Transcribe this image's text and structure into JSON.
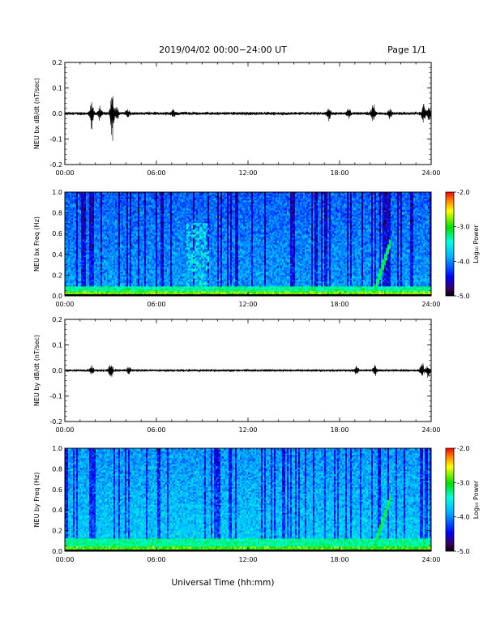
{
  "header": {
    "title": "2019/04/02  00:00−24:00 UT",
    "page": "Page 1/1"
  },
  "x_axis": {
    "label": "Universal Time (hh:mm)",
    "ticks": [
      "00:00",
      "06:00",
      "12:00",
      "18:00",
      "24:00"
    ]
  },
  "colorbar": {
    "label": "Log₁₀ Power",
    "ticks": [
      "-2.0",
      "-3.0",
      "-4.0",
      "-5.0"
    ]
  },
  "chart_data": [
    {
      "type": "line",
      "ylabel": "NEU bx dB/dt (nT/sec)",
      "x_unit": "hours UT",
      "xlim": [
        0,
        24
      ],
      "ylim": [
        -0.2,
        0.2
      ],
      "yticks": [
        "0.2",
        "0.1",
        "0.0",
        "-0.1",
        "-0.2"
      ],
      "baseline_amplitude": 0.006,
      "events": [
        {
          "t": 1.75,
          "amp": 0.07
        },
        {
          "t": 2.3,
          "amp": 0.03
        },
        {
          "t": 3.1,
          "amp": 0.12
        },
        {
          "t": 3.4,
          "amp": 0.04
        },
        {
          "t": 4.1,
          "amp": 0.02
        },
        {
          "t": 7.1,
          "amp": 0.025
        },
        {
          "t": 17.3,
          "amp": 0.03
        },
        {
          "t": 18.6,
          "amp": 0.025
        },
        {
          "t": 20.2,
          "amp": 0.045
        },
        {
          "t": 21.3,
          "amp": 0.02
        },
        {
          "t": 23.5,
          "amp": 0.05
        },
        {
          "t": 23.85,
          "amp": 0.035
        }
      ]
    },
    {
      "type": "heatmap",
      "ylabel": "NEU bx Freq (Hz)",
      "x_unit": "hours UT",
      "xlim": [
        0,
        24
      ],
      "ylim": [
        0,
        1
      ],
      "yticks": [
        "1.0",
        "0.8",
        "0.6",
        "0.4",
        "0.2",
        "0.0"
      ],
      "value": "log10 power",
      "clim": [
        -5.0,
        -2.0
      ],
      "features": [
        {
          "desc": "intense low-frequency band",
          "f_max": 0.04,
          "log_power": -2.8
        },
        {
          "desc": "moderate band",
          "f_max": 0.1,
          "log_power": -3.3
        },
        {
          "desc": "broadband background",
          "log_power": -3.9
        },
        {
          "desc": "rising emission",
          "t": [
            20.3,
            21.3
          ],
          "f": [
            0.05,
            0.5
          ],
          "log_power": -3.2
        },
        {
          "desc": "enhanced patch",
          "t": [
            8.0,
            9.5
          ],
          "f": [
            0.1,
            0.7
          ],
          "log_power": -3.5
        }
      ]
    },
    {
      "type": "line",
      "ylabel": "NEU by dB/dt (nT/sec)",
      "x_unit": "hours UT",
      "xlim": [
        0,
        24
      ],
      "ylim": [
        -0.2,
        0.2
      ],
      "yticks": [
        "0.2",
        "0.1",
        "0.0",
        "-0.1",
        "-0.2"
      ],
      "baseline_amplitude": 0.005,
      "events": [
        {
          "t": 1.75,
          "amp": 0.02
        },
        {
          "t": 3.0,
          "amp": 0.045
        },
        {
          "t": 4.2,
          "amp": 0.015
        },
        {
          "t": 19.1,
          "amp": 0.02
        },
        {
          "t": 20.3,
          "amp": 0.03
        },
        {
          "t": 23.4,
          "amp": 0.035
        },
        {
          "t": 23.8,
          "amp": 0.03
        }
      ]
    },
    {
      "type": "heatmap",
      "ylabel": "NEU by Freq (Hz)",
      "x_unit": "hours UT",
      "xlim": [
        0,
        24
      ],
      "ylim": [
        0,
        1
      ],
      "yticks": [
        "1.0",
        "0.8",
        "0.6",
        "0.4",
        "0.2",
        "0.0"
      ],
      "value": "log10 power",
      "clim": [
        -5.0,
        -2.0
      ],
      "features": [
        {
          "desc": "intense low-frequency band",
          "f_max": 0.04,
          "log_power": -2.9
        },
        {
          "desc": "moderate band",
          "f_max": 0.12,
          "log_power": -3.3
        },
        {
          "desc": "broadband background",
          "log_power": -3.7
        },
        {
          "desc": "rising emission",
          "t": [
            20.3,
            21.3
          ],
          "f": [
            0.05,
            0.5
          ],
          "log_power": -3.2
        }
      ]
    }
  ]
}
